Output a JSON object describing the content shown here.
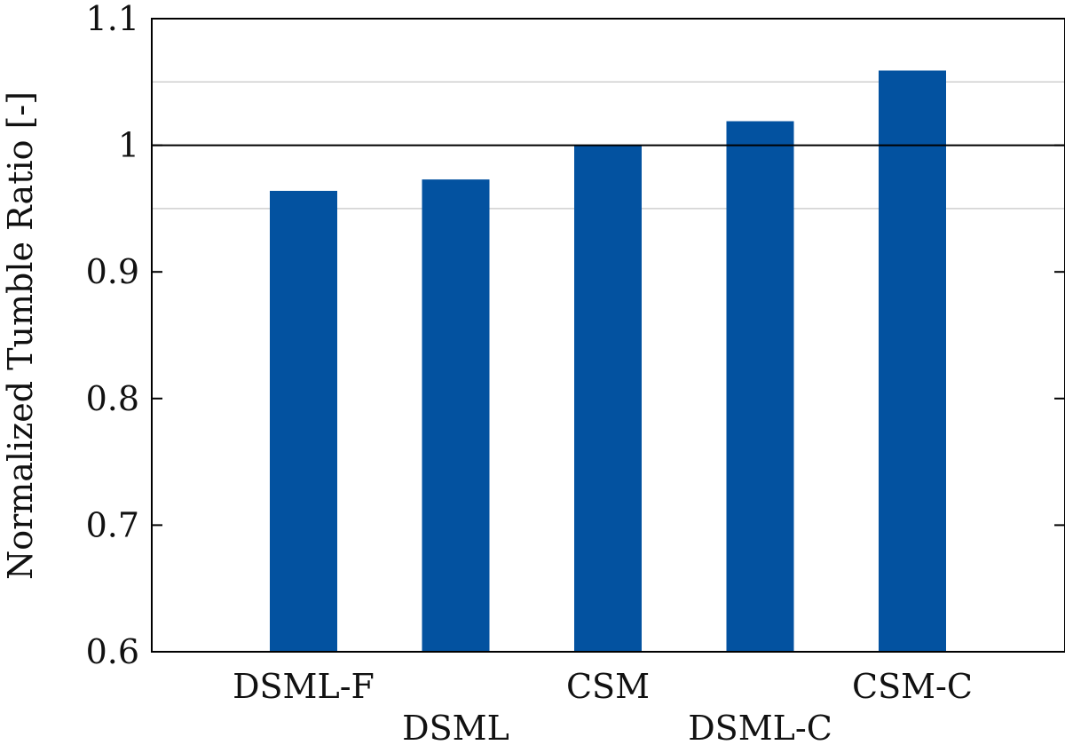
{
  "chart_data": {
    "type": "bar",
    "ylabel": "Normalized Tumble Ratio [-]",
    "xlabel": "",
    "ylim": [
      0.6,
      1.1
    ],
    "yticks": [
      "0.6",
      "0.7",
      "0.8",
      "0.9",
      "1",
      "1.1"
    ],
    "ytick_values": [
      0.6,
      0.7,
      0.8,
      0.9,
      1.0,
      1.1
    ],
    "reference_line": 1.0,
    "minor_gridlines": [
      0.95,
      1.05
    ],
    "categories": [
      "DSML-F",
      "DSML",
      "CSM",
      "DSML-C",
      "CSM-C"
    ],
    "values": [
      0.964,
      0.973,
      1.0,
      1.019,
      1.059
    ],
    "bar_color": "#0352a0",
    "grid": "horizontal at 0.95, 1.05",
    "legend": "none"
  }
}
